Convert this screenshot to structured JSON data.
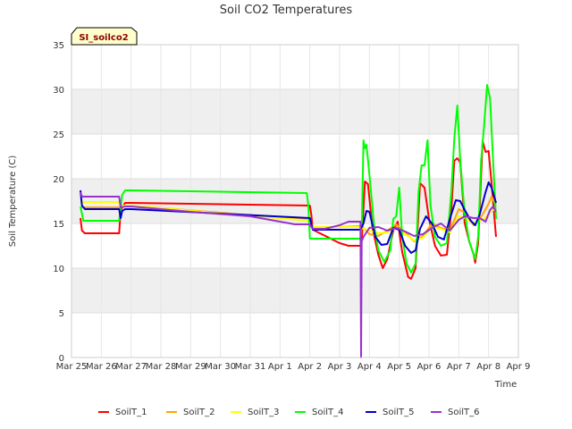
{
  "chart_data": {
    "type": "line",
    "title": "Soil CO2 Temperatures",
    "tag": "SI_soilco2",
    "xlabel": "Time",
    "ylabel": "Soil Temperature (C)",
    "ylim": [
      0,
      35
    ],
    "yticks": [
      0,
      5,
      10,
      15,
      20,
      25,
      30,
      35
    ],
    "xlim": [
      0,
      15
    ],
    "xticks": [
      {
        "x": 0,
        "label": "Mar 25"
      },
      {
        "x": 1,
        "label": "Mar 26"
      },
      {
        "x": 2,
        "label": "Mar 27"
      },
      {
        "x": 3,
        "label": "Mar 28"
      },
      {
        "x": 4,
        "label": "Mar 29"
      },
      {
        "x": 5,
        "label": "Mar 30"
      },
      {
        "x": 6,
        "label": "Mar 31"
      },
      {
        "x": 7,
        "label": "Apr 1"
      },
      {
        "x": 8,
        "label": "Apr 2"
      },
      {
        "x": 9,
        "label": "Apr 3"
      },
      {
        "x": 10,
        "label": "Apr 4"
      },
      {
        "x": 11,
        "label": "Apr 5"
      },
      {
        "x": 12,
        "label": "Apr 6"
      },
      {
        "x": 13,
        "label": "Apr 7"
      },
      {
        "x": 14,
        "label": "Apr 8"
      },
      {
        "x": 15,
        "label": "Apr 9"
      }
    ],
    "grid": true,
    "legend_position": "bottom",
    "series": [
      {
        "name": "SoilT_1",
        "color": "#ff0000",
        "points": [
          [
            0.3,
            15.6
          ],
          [
            0.35,
            14.2
          ],
          [
            0.45,
            13.9
          ],
          [
            1.6,
            13.9
          ],
          [
            1.65,
            16.5
          ],
          [
            1.8,
            17.3
          ],
          [
            2.0,
            17.3
          ],
          [
            8.0,
            17.0
          ],
          [
            8.05,
            16.0
          ],
          [
            8.1,
            14.3
          ],
          [
            9.0,
            12.8
          ],
          [
            9.3,
            12.5
          ],
          [
            9.7,
            12.5
          ],
          [
            9.75,
            13.5
          ],
          [
            9.85,
            19.7
          ],
          [
            9.95,
            19.4
          ],
          [
            10.1,
            14.5
          ],
          [
            10.3,
            11.5
          ],
          [
            10.45,
            10.0
          ],
          [
            10.6,
            11.0
          ],
          [
            10.8,
            14.2
          ],
          [
            10.95,
            15.2
          ],
          [
            11.1,
            11.8
          ],
          [
            11.3,
            9.0
          ],
          [
            11.4,
            8.8
          ],
          [
            11.55,
            10.0
          ],
          [
            11.7,
            19.5
          ],
          [
            11.85,
            19.0
          ],
          [
            12.0,
            15.5
          ],
          [
            12.2,
            12.5
          ],
          [
            12.4,
            11.4
          ],
          [
            12.6,
            11.5
          ],
          [
            12.75,
            16.5
          ],
          [
            12.85,
            22.0
          ],
          [
            12.95,
            22.3
          ],
          [
            13.05,
            21.8
          ],
          [
            13.2,
            15.0
          ],
          [
            13.35,
            13.0
          ],
          [
            13.5,
            11.5
          ],
          [
            13.55,
            10.6
          ],
          [
            13.65,
            12.8
          ],
          [
            13.8,
            24.2
          ],
          [
            13.9,
            23.0
          ],
          [
            14.0,
            23.1
          ],
          [
            14.1,
            19.5
          ],
          [
            14.25,
            13.5
          ]
        ]
      },
      {
        "name": "SoilT_2",
        "color": "#ffa500",
        "points": [
          [
            0.3,
            16.8
          ],
          [
            0.4,
            16.8
          ],
          [
            1.6,
            16.8
          ],
          [
            1.7,
            17.0
          ],
          [
            2.0,
            17.0
          ],
          [
            8.0,
            15.4
          ],
          [
            8.1,
            14.5
          ],
          [
            9.7,
            14.7
          ],
          [
            9.8,
            14.5
          ],
          [
            10.0,
            13.8
          ],
          [
            10.3,
            13.6
          ],
          [
            10.6,
            14.2
          ],
          [
            10.9,
            14.9
          ],
          [
            11.2,
            14.0
          ],
          [
            11.5,
            13.0
          ],
          [
            11.8,
            13.6
          ],
          [
            12.1,
            15.0
          ],
          [
            12.4,
            14.5
          ],
          [
            12.7,
            14.2
          ],
          [
            13.0,
            16.6
          ],
          [
            13.2,
            16.2
          ],
          [
            13.5,
            14.8
          ],
          [
            13.8,
            16.0
          ],
          [
            14.0,
            17.2
          ],
          [
            14.1,
            18.0
          ],
          [
            14.25,
            17.0
          ]
        ]
      },
      {
        "name": "SoilT_3",
        "color": "#ffff00",
        "points": [
          [
            0.3,
            17.6
          ],
          [
            0.4,
            17.4
          ],
          [
            1.6,
            17.4
          ],
          [
            1.7,
            17.0
          ],
          [
            2.0,
            17.0
          ],
          [
            8.0,
            15.3
          ],
          [
            8.1,
            14.6
          ],
          [
            9.7,
            14.6
          ],
          [
            9.8,
            14.4
          ],
          [
            10.0,
            14.2
          ],
          [
            10.3,
            13.9
          ],
          [
            10.6,
            14.0
          ],
          [
            10.9,
            14.5
          ],
          [
            11.2,
            13.8
          ],
          [
            11.5,
            13.1
          ],
          [
            11.8,
            13.4
          ],
          [
            12.1,
            14.6
          ],
          [
            12.4,
            14.4
          ],
          [
            12.7,
            14.0
          ],
          [
            13.0,
            15.8
          ],
          [
            13.2,
            15.6
          ],
          [
            13.5,
            15.0
          ],
          [
            13.8,
            15.4
          ],
          [
            14.0,
            16.0
          ],
          [
            14.1,
            16.6
          ],
          [
            14.25,
            16.4
          ]
        ]
      },
      {
        "name": "SoilT_4",
        "color": "#00ff00",
        "points": [
          [
            0.3,
            16.9
          ],
          [
            0.4,
            15.3
          ],
          [
            1.6,
            15.3
          ],
          [
            1.7,
            18.2
          ],
          [
            1.8,
            18.7
          ],
          [
            2.0,
            18.7
          ],
          [
            7.9,
            18.4
          ],
          [
            7.95,
            17.0
          ],
          [
            8.0,
            13.3
          ],
          [
            9.7,
            13.3
          ],
          [
            9.75,
            15.5
          ],
          [
            9.8,
            24.3
          ],
          [
            9.85,
            23.4
          ],
          [
            9.9,
            23.8
          ],
          [
            10.0,
            20.5
          ],
          [
            10.15,
            15.0
          ],
          [
            10.3,
            12.0
          ],
          [
            10.5,
            10.7
          ],
          [
            10.7,
            12.0
          ],
          [
            10.8,
            15.5
          ],
          [
            10.9,
            15.8
          ],
          [
            11.0,
            19.0
          ],
          [
            11.1,
            13.5
          ],
          [
            11.25,
            10.5
          ],
          [
            11.4,
            9.5
          ],
          [
            11.55,
            10.5
          ],
          [
            11.65,
            18.5
          ],
          [
            11.75,
            21.5
          ],
          [
            11.85,
            21.5
          ],
          [
            11.95,
            24.3
          ],
          [
            12.05,
            17.0
          ],
          [
            12.2,
            13.5
          ],
          [
            12.4,
            12.5
          ],
          [
            12.6,
            12.8
          ],
          [
            12.75,
            18.5
          ],
          [
            12.85,
            24.5
          ],
          [
            12.95,
            28.2
          ],
          [
            13.05,
            22.0
          ],
          [
            13.2,
            16.0
          ],
          [
            13.35,
            13.0
          ],
          [
            13.5,
            11.5
          ],
          [
            13.55,
            11.0
          ],
          [
            13.65,
            13.5
          ],
          [
            13.75,
            22.0
          ],
          [
            13.85,
            26.0
          ],
          [
            13.95,
            30.5
          ],
          [
            14.05,
            29.0
          ],
          [
            14.15,
            22.0
          ],
          [
            14.25,
            15.5
          ]
        ]
      },
      {
        "name": "SoilT_5",
        "color": "#0000cc",
        "points": [
          [
            0.3,
            18.7
          ],
          [
            0.35,
            17.0
          ],
          [
            0.45,
            16.6
          ],
          [
            1.6,
            16.6
          ],
          [
            1.65,
            15.6
          ],
          [
            1.7,
            16.4
          ],
          [
            1.8,
            16.6
          ],
          [
            2.0,
            16.6
          ],
          [
            8.0,
            15.6
          ],
          [
            8.1,
            14.3
          ],
          [
            9.7,
            14.3
          ],
          [
            9.8,
            15.0
          ],
          [
            9.9,
            16.4
          ],
          [
            10.0,
            16.3
          ],
          [
            10.2,
            13.5
          ],
          [
            10.4,
            12.6
          ],
          [
            10.6,
            12.7
          ],
          [
            10.8,
            14.5
          ],
          [
            11.0,
            14.3
          ],
          [
            11.2,
            12.5
          ],
          [
            11.4,
            11.7
          ],
          [
            11.55,
            12.0
          ],
          [
            11.7,
            14.4
          ],
          [
            11.9,
            15.8
          ],
          [
            12.1,
            15.0
          ],
          [
            12.3,
            13.5
          ],
          [
            12.5,
            13.2
          ],
          [
            12.7,
            15.5
          ],
          [
            12.9,
            17.6
          ],
          [
            13.05,
            17.5
          ],
          [
            13.2,
            16.5
          ],
          [
            13.4,
            15.3
          ],
          [
            13.55,
            14.8
          ],
          [
            13.7,
            16.0
          ],
          [
            13.9,
            18.5
          ],
          [
            14.0,
            19.6
          ],
          [
            14.1,
            19.0
          ],
          [
            14.25,
            17.3
          ]
        ]
      },
      {
        "name": "SoilT_6",
        "color": "#9932cc",
        "points": [
          [
            0.3,
            18.5
          ],
          [
            0.35,
            18.0
          ],
          [
            1.6,
            18.0
          ],
          [
            1.65,
            16.8
          ],
          [
            1.8,
            16.9
          ],
          [
            2.0,
            16.9
          ],
          [
            4.0,
            16.3
          ],
          [
            6.0,
            15.8
          ],
          [
            7.0,
            15.2
          ],
          [
            7.5,
            14.9
          ],
          [
            8.0,
            14.9
          ],
          [
            8.05,
            14.6
          ],
          [
            8.1,
            14.4
          ],
          [
            8.5,
            14.4
          ],
          [
            9.0,
            14.8
          ],
          [
            9.3,
            15.2
          ],
          [
            9.7,
            15.2
          ],
          [
            9.72,
            0.0
          ],
          [
            9.74,
            13.0
          ],
          [
            9.8,
            13.5
          ],
          [
            10.0,
            14.5
          ],
          [
            10.3,
            14.6
          ],
          [
            10.6,
            14.2
          ],
          [
            10.9,
            14.5
          ],
          [
            11.2,
            14.1
          ],
          [
            11.5,
            13.6
          ],
          [
            11.8,
            13.8
          ],
          [
            12.1,
            14.5
          ],
          [
            12.4,
            15.0
          ],
          [
            12.7,
            14.2
          ],
          [
            13.0,
            15.4
          ],
          [
            13.2,
            15.8
          ],
          [
            13.5,
            15.6
          ],
          [
            13.7,
            15.6
          ],
          [
            13.9,
            15.2
          ],
          [
            14.05,
            16.5
          ],
          [
            14.15,
            16.9
          ],
          [
            14.25,
            16.3
          ]
        ]
      }
    ]
  }
}
